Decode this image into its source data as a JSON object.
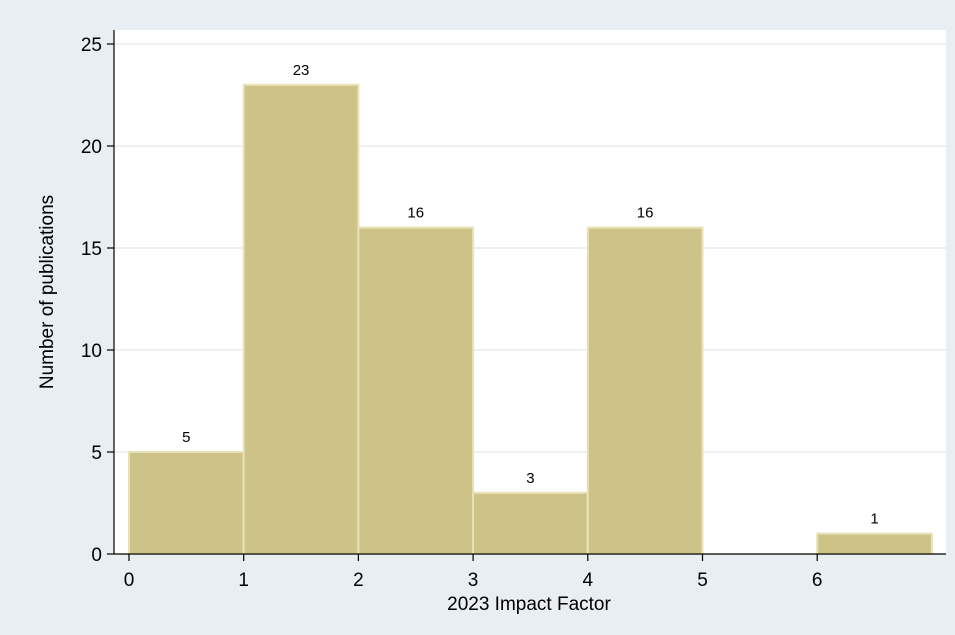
{
  "chart_data": {
    "type": "bar",
    "title": "",
    "xlabel": "2023 Impact Factor",
    "ylabel": "Number of publications",
    "bins": [
      {
        "x0": 0,
        "x1": 1,
        "value": 5
      },
      {
        "x0": 1,
        "x1": 2,
        "value": 23
      },
      {
        "x0": 2,
        "x1": 3,
        "value": 16
      },
      {
        "x0": 3,
        "x1": 4,
        "value": 3
      },
      {
        "x0": 4,
        "x1": 5,
        "value": 16
      },
      {
        "x0": 5,
        "x1": 6,
        "value": 0
      },
      {
        "x0": 6,
        "x1": 7,
        "value": 1
      }
    ],
    "xlim": [
      0,
      7
    ],
    "ylim": [
      0,
      25
    ],
    "xticks": [
      "0",
      "1",
      "2",
      "3",
      "4",
      "5",
      "6"
    ],
    "yticks": [
      "0",
      "5",
      "10",
      "15",
      "20",
      "25"
    ],
    "data_labels": true,
    "grid": true,
    "colors": {
      "bar_fill": "#cdc386",
      "bar_edge": "#e8e2b8",
      "plot_background": "#ffffff",
      "outer_background": "#e9eef2",
      "grid": "#e6ebef"
    }
  }
}
